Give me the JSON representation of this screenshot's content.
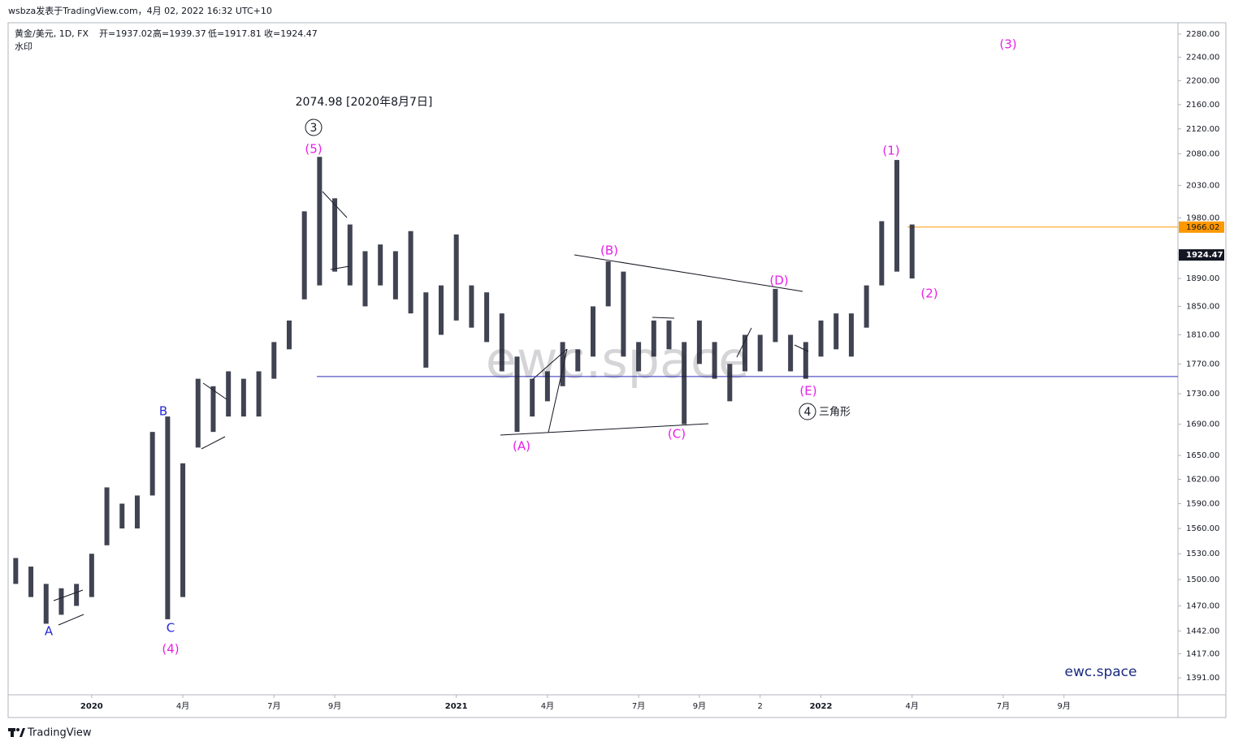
{
  "header": {
    "author_line": "wsbza发表于TradingView.com，4月 02, 2022 16:32 UTC+10",
    "symbol": "黄金/美元, 1D, FX",
    "ohlc": [
      "开=1937.02",
      "高=1939.37",
      "低=1917.81",
      "收=1924.47"
    ],
    "watermark_label": "水印"
  },
  "chart_data": {
    "type": "range-bar",
    "categories": [
      null,
      null,
      null,
      null,
      null,
      "2020",
      null,
      null,
      null,
      null,
      null,
      "4月",
      null,
      null,
      null,
      null,
      null,
      "7月",
      null,
      null,
      null,
      "9月",
      null,
      null,
      null,
      null,
      null,
      null,
      null,
      "2021",
      null,
      null,
      null,
      null,
      null,
      "4月",
      null,
      null,
      null,
      null,
      null,
      "7月",
      null,
      null,
      null,
      "9月",
      null,
      null,
      null,
      "2",
      null,
      null,
      null,
      "2022",
      null,
      null,
      null,
      null,
      null,
      "4月",
      null,
      null,
      null,
      null,
      null,
      "7月",
      null,
      null,
      null,
      "9月",
      null,
      null,
      null,
      null,
      null,
      null,
      null
    ],
    "high": [
      1525,
      1515,
      1495,
      1490,
      1495,
      1530,
      1610,
      1590,
      1600,
      1680,
      1700,
      1640,
      1750,
      1740,
      1760,
      1750,
      1760,
      1800,
      1830,
      1990,
      2074.98,
      2010,
      1970,
      1930,
      1940,
      1930,
      1960,
      1870,
      1880,
      1955,
      1880,
      1870,
      1840,
      1780,
      1750,
      1760,
      1800,
      1790,
      1850,
      1915,
      1900,
      1800,
      1830,
      1830,
      1800,
      1830,
      1800,
      1770,
      1810,
      1810,
      1875,
      1810,
      1800,
      1830,
      1840,
      1840,
      1880,
      1975,
      2070,
      1970,
      null,
      null,
      null,
      null,
      null,
      null,
      null,
      null,
      null,
      null,
      null,
      null,
      null,
      null,
      null,
      null,
      null
    ],
    "low": [
      1495,
      1480,
      1450,
      1460,
      1470,
      1480,
      1540,
      1560,
      1560,
      1600,
      1455,
      1480,
      1660,
      1680,
      1700,
      1700,
      1700,
      1750,
      1790,
      1860,
      1880,
      1900,
      1880,
      1850,
      1880,
      1860,
      1840,
      1765,
      1810,
      1830,
      1820,
      1800,
      1760,
      1680,
      1700,
      1720,
      1740,
      1760,
      1780,
      1850,
      1780,
      1760,
      1780,
      1790,
      1690,
      1770,
      1750,
      1720,
      1760,
      1760,
      1800,
      1760,
      1750,
      1780,
      1790,
      1780,
      1820,
      1880,
      1900,
      1890,
      null,
      null,
      null,
      null,
      null,
      null,
      null,
      null,
      null,
      null,
      null,
      null,
      null,
      null,
      null,
      null,
      null
    ],
    "color": "#1f2233",
    "log_scale": true,
    "ylim": [
      1373,
      2300
    ],
    "yticks": [
      {
        "value": 2280,
        "label": "2280.00"
      },
      {
        "value": 2240,
        "label": "2240.00"
      },
      {
        "value": 2200,
        "label": "2200.00"
      },
      {
        "value": 2160,
        "label": "2160.00"
      },
      {
        "value": 2120,
        "label": "2120.00"
      },
      {
        "value": 2080,
        "label": "2080.00"
      },
      {
        "value": 2030,
        "label": "2030.00"
      },
      {
        "value": 1980,
        "label": "1980.00"
      },
      {
        "value": 1890,
        "label": "1890.00"
      },
      {
        "value": 1850,
        "label": "1850.00"
      },
      {
        "value": 1810,
        "label": "1810.00"
      },
      {
        "value": 1770,
        "label": "1770.00"
      },
      {
        "value": 1730,
        "label": "1730.00"
      },
      {
        "value": 1690,
        "label": "1690.00"
      },
      {
        "value": 1650,
        "label": "1650.00"
      },
      {
        "value": 1620,
        "label": "1620.00"
      },
      {
        "value": 1590,
        "label": "1590.00"
      },
      {
        "value": 1560,
        "label": "1560.00"
      },
      {
        "value": 1530,
        "label": "1530.00"
      },
      {
        "value": 1500,
        "label": "1500.00"
      },
      {
        "value": 1470,
        "label": "1470.00"
      },
      {
        "value": 1442,
        "label": "1442.00"
      },
      {
        "value": 1417,
        "label": "1417.00"
      },
      {
        "value": 1391,
        "label": "1391.00"
      }
    ],
    "price_lines": [
      {
        "value": 1753,
        "color": "#2a2ab8",
        "axis_label": false
      },
      {
        "value": 1966.02,
        "color": "#ff9800",
        "axis_label": true
      }
    ],
    "last_price": 1924.47,
    "annotations": [
      "2074.98 [2020年8月7日]",
      "3",
      "(5)",
      "A",
      "B",
      "C",
      "(4)",
      "(A)",
      "(B)",
      "(C)",
      "(D)",
      "(E)",
      "4",
      "三角形",
      "(1)",
      "(2)",
      "(3)"
    ]
  },
  "watermark": "ewc.space",
  "brand": "ewc.space",
  "footer": "TradingView"
}
